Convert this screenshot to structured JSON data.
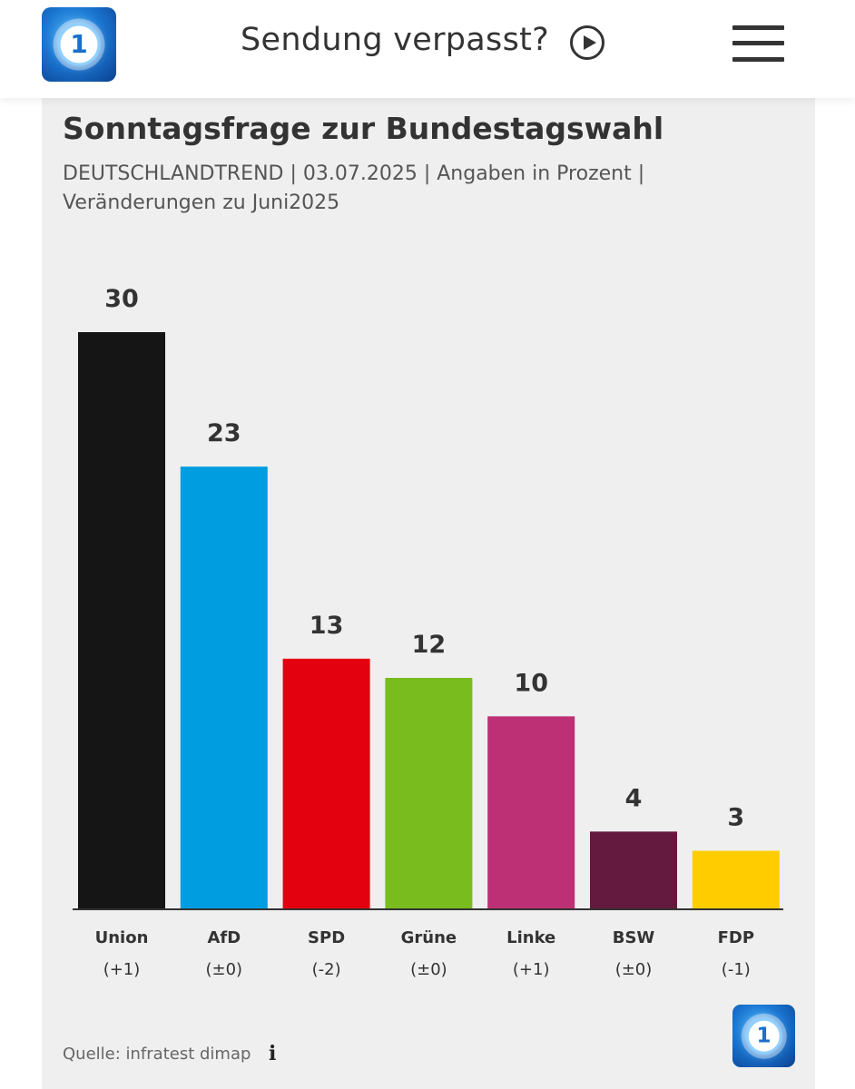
{
  "header": {
    "nav_title": "Sendung verpasst?",
    "logo_icon": "tagesschau-logo-icon",
    "logo_glyph": "1",
    "play_icon": "play-circle-icon",
    "menu_icon": "hamburger-menu-icon"
  },
  "card": {
    "title": "Sonntagsfrage zur Bundestagswahl",
    "subtitle_line1": "DEUTSCHLANDTREND | 03.07.2025 | Angaben in Prozent |",
    "subtitle_line2": "Veränderungen zu Juni2025",
    "source": "Quelle: infratest dimap",
    "info_glyph": "i",
    "background_color": "#efefef"
  },
  "chart_data": {
    "type": "bar",
    "title": "Sonntagsfrage zur Bundestagswahl",
    "xlabel": "",
    "ylabel": "",
    "ylim": [
      0,
      30
    ],
    "grid": false,
    "categories": [
      "Union",
      "AfD",
      "SPD",
      "Grüne",
      "Linke",
      "BSW",
      "FDP"
    ],
    "values": [
      30,
      23,
      13,
      12,
      10,
      4,
      3
    ],
    "changes": [
      "(+1)",
      "(±0)",
      "(-2)",
      "(±0)",
      "(+1)",
      "(±0)",
      "(-1)"
    ],
    "colors": [
      "#151515",
      "#009ee0",
      "#e3000f",
      "#78bc1e",
      "#be3075",
      "#641a3f",
      "#ffcc00"
    ]
  }
}
